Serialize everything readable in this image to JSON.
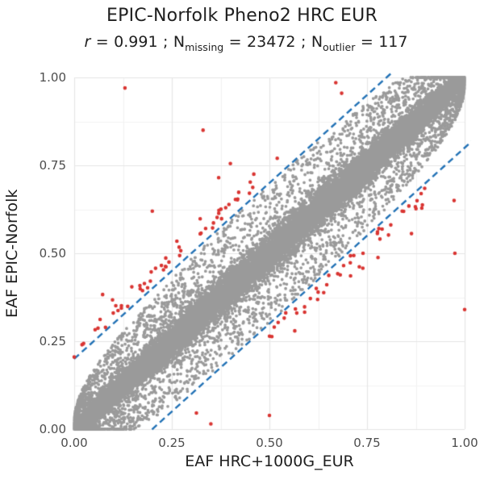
{
  "page": {
    "background": "#ffffff"
  },
  "text_colors": {
    "title": "#1f1f1f",
    "axis_title": "#1f1f1f",
    "tick_label": "#4d4d4d"
  },
  "chart_data": {
    "type": "scatter",
    "title": "EPIC-Norfolk Pheno2 HRC EUR",
    "subtitle": {
      "text": "r = 0.991 ; N_missing = 23472 ; N_outlier = 117",
      "r_label": "r",
      "equals": "=",
      "r_value": "0.991",
      "separator": ";",
      "n_label": "N",
      "missing_subscript": "missing",
      "missing_value": "23472",
      "outlier_subscript": "outlier",
      "outlier_value": "117"
    },
    "x_axis": {
      "label": "EAF HRC+1000G_EUR",
      "range": [
        0,
        1
      ],
      "tick_values": [
        0,
        0.25,
        0.5,
        0.75,
        1
      ],
      "tick_labels": [
        "0.00",
        "0.25",
        "0.50",
        "0.75",
        "1.00"
      ],
      "minor_tick_values": [
        0.125,
        0.375,
        0.625,
        0.875
      ]
    },
    "y_axis": {
      "label": "EAF EPIC-Norfolk",
      "range": [
        0,
        1
      ],
      "tick_values": [
        0,
        0.25,
        0.5,
        0.75,
        1
      ],
      "tick_labels": [
        "0.00",
        "0.25",
        "0.50",
        "0.75",
        "1.00"
      ],
      "minor_tick_values": [
        0.125,
        0.375,
        0.625,
        0.875
      ]
    },
    "grid": {
      "major_color": "#e5e5e5",
      "minor_color": "#f2f2f2",
      "background": "#ffffff"
    },
    "legend": null,
    "reference_lines": [
      {
        "name": "upper-outlier-threshold",
        "equation": "y = x + 0.2",
        "slope": 1,
        "intercept": 0.2,
        "style": "dashed",
        "color": "#2171b5",
        "width": 2.4,
        "dash": [
          8,
          5
        ]
      },
      {
        "name": "lower-outlier-threshold",
        "equation": "y = x - 0.2",
        "slope": 1,
        "intercept": -0.2,
        "style": "dashed",
        "color": "#2171b5",
        "width": 2.4,
        "dash": [
          8,
          5
        ]
      }
    ],
    "series": [
      {
        "name": "concordant-variants",
        "color": "#9a9a9a",
        "marker_radius": 1.9,
        "description": "Dense band of EAF-concordant variants along the y=x diagonal; band width proportional to sqrt(x(1-x)), pinched solid at (0,0) and (1,1), sparse fill out to the |y-x|=0.2 dashed thresholds, piling along y=0 and y=1 edges.",
        "generator": {
          "seed": 42,
          "n": 30000,
          "core_fraction": 0.82,
          "core_scale": 0.05,
          "fill_scale": 0.195,
          "fill_power": 0.6
        }
      },
      {
        "name": "outlier-variants",
        "color": "#d93532",
        "marker_radius": 2.3,
        "n_total": 117,
        "observed_points": [
          [
            0.13,
            0.97
          ],
          [
            0.33,
            0.85
          ],
          [
            0.4,
            0.755
          ],
          [
            0.37,
            0.715
          ],
          [
            0.46,
            0.725
          ],
          [
            0.2,
            0.62
          ],
          [
            0.67,
            0.985
          ],
          [
            0.685,
            0.955
          ],
          [
            0.52,
            0.77
          ],
          [
            0.973,
            0.65
          ],
          [
            0.975,
            0.5
          ],
          [
            1.0,
            0.34
          ],
          [
            0.35,
            0.015
          ],
          [
            0.313,
            0.046
          ],
          [
            0.5,
            0.039
          ],
          [
            0.0,
            0.205
          ],
          [
            0.02,
            0.24
          ],
          [
            0.061,
            0.287
          ],
          [
            0.1,
            0.33
          ],
          [
            0.137,
            0.349
          ],
          [
            0.175,
            0.394
          ],
          [
            0.188,
            0.402
          ],
          [
            0.84,
            0.62
          ],
          [
            0.62,
            0.4
          ],
          [
            0.57,
            0.33
          ],
          [
            0.69,
            0.465
          ]
        ],
        "generator": {
          "seed": 7,
          "n_upper": 48,
          "n_lower": 43,
          "upper_x_range": [
            0.02,
            0.46
          ],
          "lower_x_range": [
            0.5,
            0.9
          ],
          "hug_offset": 0.207,
          "hug_jitter": 0.05
        }
      }
    ]
  }
}
